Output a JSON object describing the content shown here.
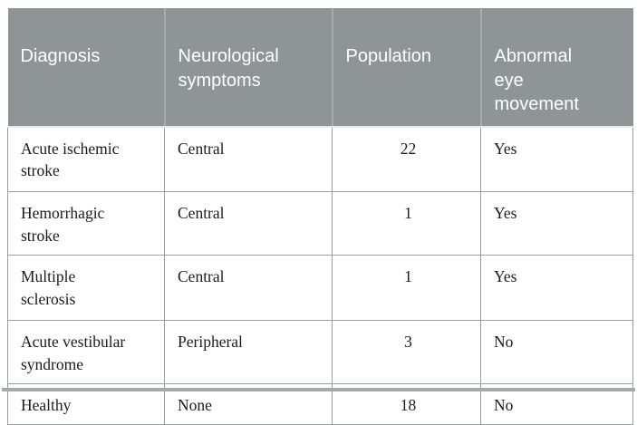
{
  "table": {
    "name": "diagnosis-summary-table",
    "columns": [
      {
        "key": "diagnosis",
        "label": "Diagnosis"
      },
      {
        "key": "neurological_symptoms",
        "label": "Neurological\nsymptoms"
      },
      {
        "key": "population",
        "label": "Population",
        "align": "center"
      },
      {
        "key": "abnormal_eye_movement",
        "label": "Abnormal eye movement"
      }
    ],
    "rows": [
      {
        "diagnosis": "Acute ischemic\nstroke",
        "neurological_symptoms": "Central",
        "population": "22",
        "abnormal_eye_movement": "Yes"
      },
      {
        "diagnosis": "Hemorrhagic\nstroke",
        "neurological_symptoms": "Central",
        "population": "1",
        "abnormal_eye_movement": "Yes"
      },
      {
        "diagnosis": "Multiple\nsclerosis",
        "neurological_symptoms": "Central",
        "population": "1",
        "abnormal_eye_movement": "Yes"
      },
      {
        "diagnosis": "Acute vestibular\nsyndrome",
        "neurological_symptoms": "Peripheral",
        "population": "3",
        "abnormal_eye_movement": "No"
      },
      {
        "diagnosis": "Healthy",
        "neurological_symptoms": "None",
        "population": "18",
        "abnormal_eye_movement": "No"
      }
    ]
  },
  "colors": {
    "header_bg": "#8F9496",
    "header_text": "#FFFFFF",
    "header_divider": "#A8ABAD",
    "body_border": "#9B9DA0",
    "body_text": "#1B1B1B",
    "bottom_rule": "#A5AAA8"
  }
}
